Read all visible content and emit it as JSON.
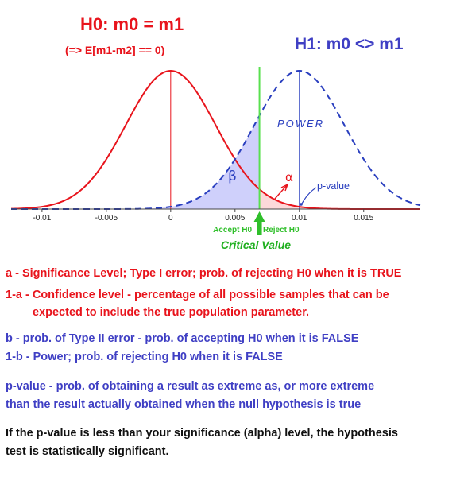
{
  "header": {
    "h0_title": "H0: m0 = m1",
    "h0_subtitle": "(=> E[m1-m2] == 0)",
    "h1_title": "H1: m0 <> m1"
  },
  "chart_data": {
    "type": "line",
    "x_ticks": [
      "-0.01",
      "-0.005",
      "0",
      "0.005",
      "0.01",
      "0.015"
    ],
    "x_tick_values": [
      -0.01,
      -0.005,
      0,
      0.005,
      0.01,
      0.015
    ],
    "xlim": [
      -0.0124,
      0.0194
    ],
    "grid": false,
    "h0": {
      "mean": 0,
      "sd": 0.0035,
      "color": "#e8141c",
      "style": "solid"
    },
    "h1": {
      "mean": 0.01,
      "sd": 0.0035,
      "color": "#2a3fbf",
      "style": "dashed"
    },
    "critical_value": 0.0069,
    "p_value": 0.0098,
    "annotations": {
      "power": "POWER",
      "beta": "β",
      "alpha": "α",
      "p_value": "p-value",
      "accept": "Accept H0",
      "reject": "Reject H0",
      "critical": "Critical Value"
    },
    "colors": {
      "beta_fill": "#cfd0fb",
      "alpha_fill": "#fcd9d9",
      "critical_line": "#59e04f",
      "arrow": "#2fbf2a",
      "axis_text": "#222222",
      "critical_text": "#22b022"
    }
  },
  "definitions": {
    "a_line": "a - Significance Level; Type I error; prob. of rejecting H0 when it is TRUE",
    "conf_line1": "1-a - Confidence level - percentage of all possible samples that can be",
    "conf_line2": "expected to include the true population parameter.",
    "b_line": "b - prob. of Type II error - prob. of accepting H0 when it is FALSE",
    "power_line": "1-b - Power; prob. of rejecting H0 when it is FALSE",
    "pvalue_line1": "p-value - prob. of obtaining a result as extreme as, or more extreme",
    "pvalue_line2": "than the result actually obtained when the null hypothesis is true",
    "conclusion_line1": "If the p-value is less than your significance (alpha) level, the hypothesis",
    "conclusion_line2": "test is statistically significant."
  }
}
